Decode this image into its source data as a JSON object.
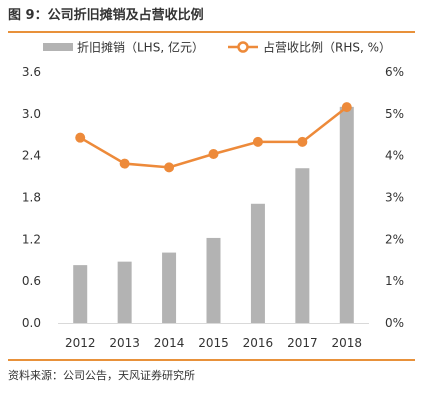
{
  "figure_title": "图 9：公司折旧摊销及占营收比例",
  "source_note": "资料来源：公司公告，天风证券研究所",
  "colors": {
    "bar": "#B3B3B3",
    "line": "#ED8A3A",
    "accent_rule": "#E8913A",
    "axis": "#D9D9D9",
    "text": "#333333"
  },
  "chart_data": {
    "type": "bar",
    "categories": [
      "2012",
      "2013",
      "2014",
      "2015",
      "2016",
      "2017",
      "2018"
    ],
    "series": [
      {
        "name": "折旧摊销（LHS, 亿元）",
        "type": "bar",
        "axis": "left",
        "values": [
          0.83,
          0.88,
          1.01,
          1.22,
          1.71,
          2.22,
          3.1
        ]
      },
      {
        "name": "占营收比例（RHS, %）",
        "type": "line",
        "axis": "right",
        "values": [
          0.0443,
          0.0381,
          0.0372,
          0.0404,
          0.0433,
          0.0433,
          0.0516
        ]
      }
    ],
    "y_left": {
      "lim": [
        0,
        3.6
      ],
      "ticks": [
        "0.0",
        "0.6",
        "1.2",
        "1.8",
        "2.4",
        "3.0",
        "3.6"
      ]
    },
    "y_right": {
      "lim": [
        0,
        0.06
      ],
      "ticks": [
        "0%",
        "1%",
        "2%",
        "3%",
        "4%",
        "5%",
        "6%"
      ]
    },
    "grid": false,
    "legend_position": "top"
  }
}
